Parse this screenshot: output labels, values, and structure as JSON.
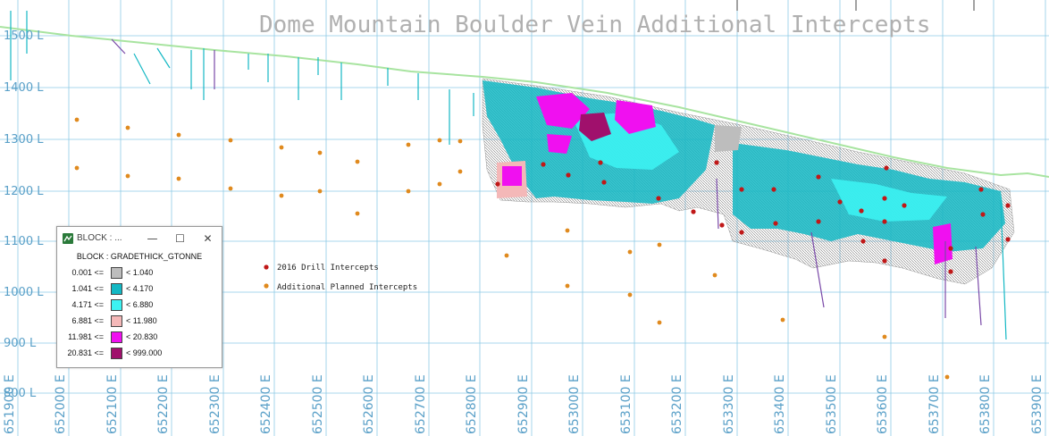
{
  "title": "Dome Mountain Boulder Vein Additional Intercepts",
  "elevation_labels": [
    "1500 L",
    "1400 L",
    "1300 L",
    "1200 L",
    "1100 L",
    "1000 L",
    "900 L",
    "800 L"
  ],
  "easting_labels": [
    "651900 E",
    "652000 E",
    "652100 E",
    "652200 E",
    "652300 E",
    "652400 E",
    "652500 E",
    "652600 E",
    "652700 E",
    "652800 E",
    "652900 E",
    "653000 E",
    "653100 E",
    "653200 E",
    "653300 E",
    "653400 E",
    "653500 E",
    "653600 E",
    "653700 E",
    "653800 E",
    "653900 E"
  ],
  "map_legend": {
    "drill_label": "2016 Drill Intercepts",
    "planned_label": "Additional Planned Intercepts",
    "drill_color": "#c01818",
    "planned_color": "#e08a1e"
  },
  "legend_window": {
    "title": "BLOCK : ...",
    "heading": "BLOCK : GRADETHICK_GTONNE",
    "minimize_icon": "minimize-icon",
    "maximize_icon": "maximize-icon",
    "close_icon": "close-icon",
    "rows": [
      {
        "lo": "0.001 <=",
        "hi": "< 1.040",
        "color": "#bdbdbd"
      },
      {
        "lo": "1.041 <=",
        "hi": "< 4.170",
        "color": "#14b8c4"
      },
      {
        "lo": "4.171 <=",
        "hi": "< 6.880",
        "color": "#3cf2f2"
      },
      {
        "lo": "6.881 <=",
        "hi": "< 11.980",
        "color": "#f4b8b8"
      },
      {
        "lo": "11.981 <=",
        "hi": "< 20.830",
        "color": "#f010f0"
      },
      {
        "lo": "20.831 <=",
        "hi": "< 999.000",
        "color": "#a0106c"
      }
    ]
  },
  "colors": {
    "grid": "#8ecae6",
    "topography": "#a8e4a0",
    "frame": "#444444"
  }
}
